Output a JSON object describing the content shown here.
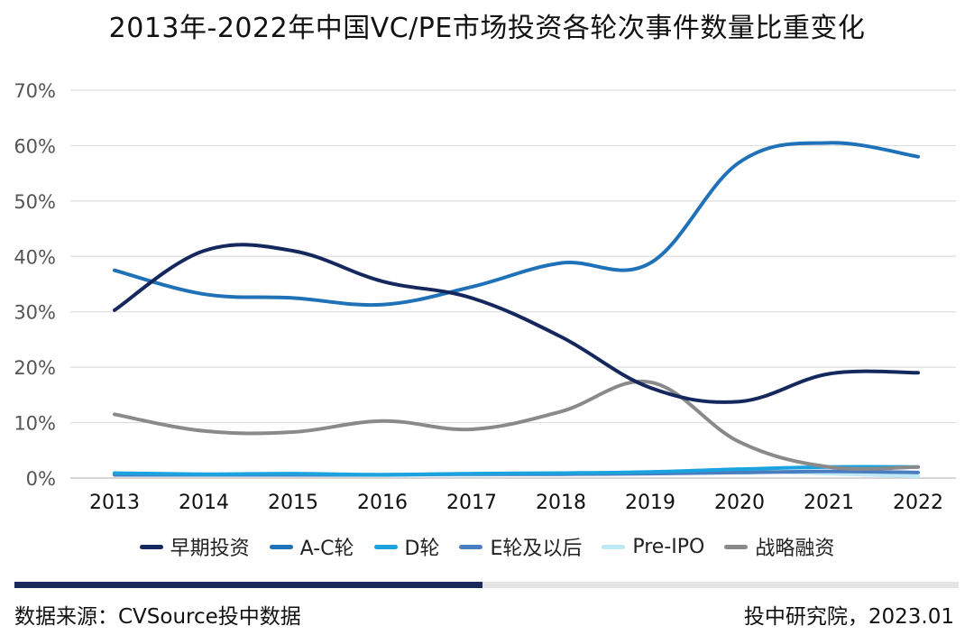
{
  "title": "2013年-2022年中国VC/PE市场投资各轮次事件数量比重变化",
  "footer": {
    "source": "数据来源：CVSource投中数据",
    "credit": "投中研究院，2023.01"
  },
  "chart_data": {
    "type": "line",
    "title": "2013年-2022年中国VC/PE市场投资各轮次事件数量比重变化",
    "x": [
      "2013",
      "2014",
      "2015",
      "2016",
      "2017",
      "2018",
      "2019",
      "2020",
      "2021",
      "2022"
    ],
    "y_ticks": [
      "0%",
      "10%",
      "20%",
      "30%",
      "40%",
      "50%",
      "60%",
      "70%"
    ],
    "ylim": [
      0,
      70
    ],
    "grid": true,
    "legend_position": "bottom",
    "series": [
      {
        "name": "早期投资",
        "color": "#14285e",
        "values": [
          30.3,
          41.0,
          41.0,
          35.5,
          32.5,
          25.5,
          16.3,
          13.8,
          18.8,
          19.0
        ]
      },
      {
        "name": "A-C轮",
        "color": "#1f72b8",
        "values": [
          37.5,
          33.2,
          32.5,
          31.3,
          34.5,
          38.8,
          38.8,
          57.0,
          60.5,
          58.0
        ]
      },
      {
        "name": "D轮",
        "color": "#1aa3df",
        "values": [
          0.9,
          0.7,
          0.8,
          0.6,
          0.8,
          0.9,
          1.1,
          1.6,
          2.0,
          2.0
        ]
      },
      {
        "name": "E轮及以后",
        "color": "#4a7ec0",
        "values": [
          0.6,
          0.6,
          0.6,
          0.6,
          0.7,
          0.7,
          0.8,
          1.0,
          1.2,
          1.0
        ]
      },
      {
        "name": "Pre-IPO",
        "color": "#bfe9f5",
        "values": [
          0.5,
          0.5,
          0.5,
          0.5,
          0.6,
          0.7,
          0.9,
          1.2,
          0.8,
          0.3
        ]
      },
      {
        "name": "战略融资",
        "color": "#8a8a8a",
        "values": [
          11.5,
          8.5,
          8.3,
          10.3,
          8.8,
          12.0,
          17.3,
          6.5,
          2.0,
          2.0
        ]
      }
    ]
  }
}
